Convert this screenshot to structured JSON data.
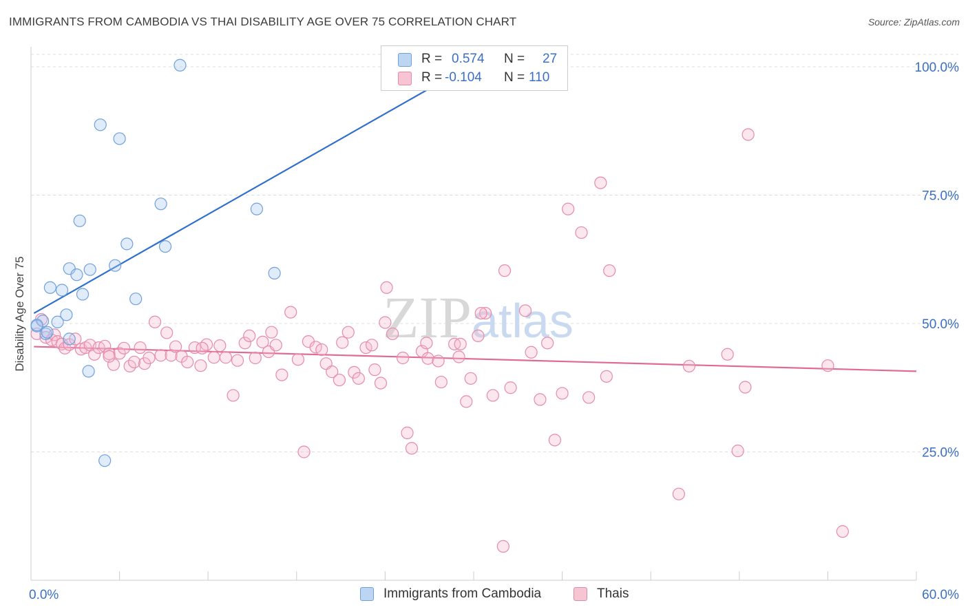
{
  "header": {
    "title": "IMMIGRANTS FROM CAMBODIA VS THAI DISABILITY AGE OVER 75 CORRELATION CHART",
    "source": "Source: ZipAtlas.com"
  },
  "watermark": "ZIPatlas",
  "legend": {
    "r_label": "R =",
    "n_label": "N =",
    "rows": [
      {
        "name": "Immigrants from Cambodia",
        "r": "0.574",
        "n": "27",
        "swatch_fill": "#bcd5f3",
        "swatch_stroke": "#6f9fdd"
      },
      {
        "name": "Thais",
        "r": "-0.104",
        "n": "110",
        "swatch_fill": "#f7c4d4",
        "swatch_stroke": "#e08aa8"
      }
    ]
  },
  "colors": {
    "value_blue": "#3b6fc4",
    "cambodia_fill": "rgba(170,200,240,0.35)",
    "cambodia_stroke": "#6f9fdd",
    "cambodia_line": "#2f6fcd",
    "thai_fill": "rgba(245,185,205,0.35)",
    "thai_stroke": "#e58aaa",
    "thai_line": "#e06a96",
    "grid": "#dcdcdc",
    "axis": "#cccccc"
  },
  "chart_data": {
    "type": "scatter",
    "title": "IMMIGRANTS FROM CAMBODIA VS THAI DISABILITY AGE OVER 75 CORRELATION CHART",
    "xlabel": "",
    "ylabel": "Disability Age Over 75",
    "xlim": [
      0,
      60
    ],
    "ylim": [
      0,
      102
    ],
    "x_tick_labels": [
      "0.0%",
      "60.0%"
    ],
    "y_ticks": [
      25,
      50,
      75,
      100
    ],
    "y_tick_labels": [
      "25.0%",
      "50.0%",
      "75.0%",
      "100.0%"
    ],
    "grid": true,
    "legend_position": "top-center",
    "series": [
      {
        "name": "Immigrants from Cambodia",
        "r": 0.574,
        "n": 27,
        "trend": {
          "x": [
            0.2,
            29.6
          ],
          "y": [
            52.0,
            100.0
          ]
        },
        "points": [
          [
            0.4,
            49.5
          ],
          [
            0.8,
            50.5
          ],
          [
            1.0,
            48.0
          ],
          [
            1.3,
            57.0
          ],
          [
            1.8,
            50.3
          ],
          [
            2.1,
            56.5
          ],
          [
            2.4,
            51.7
          ],
          [
            2.6,
            47.0
          ],
          [
            2.6,
            60.7
          ],
          [
            3.1,
            59.5
          ],
          [
            3.3,
            70.0
          ],
          [
            3.5,
            55.7
          ],
          [
            3.9,
            40.7
          ],
          [
            4.0,
            60.5
          ],
          [
            4.7,
            88.7
          ],
          [
            5.0,
            23.3
          ],
          [
            5.7,
            61.3
          ],
          [
            6.0,
            86.0
          ],
          [
            6.5,
            65.5
          ],
          [
            7.1,
            54.8
          ],
          [
            8.8,
            73.3
          ],
          [
            9.1,
            65.0
          ],
          [
            10.1,
            100.3
          ],
          [
            15.3,
            72.3
          ],
          [
            16.5,
            59.8
          ],
          [
            0.4,
            49.7
          ],
          [
            1.1,
            48.3
          ]
        ]
      },
      {
        "name": "Thais",
        "r": -0.104,
        "n": 110,
        "trend": {
          "x": [
            0.2,
            60.0
          ],
          "y": [
            45.5,
            40.7
          ]
        },
        "points": [
          [
            0.4,
            48.0
          ],
          [
            0.7,
            50.8
          ],
          [
            1.0,
            47.3
          ],
          [
            1.4,
            46.8
          ],
          [
            1.6,
            47.8
          ],
          [
            1.8,
            46.5
          ],
          [
            2.1,
            46.0
          ],
          [
            2.3,
            45.2
          ],
          [
            2.6,
            45.9
          ],
          [
            3.0,
            47.0
          ],
          [
            3.4,
            45.0
          ],
          [
            3.7,
            45.3
          ],
          [
            4.0,
            45.8
          ],
          [
            4.3,
            44.0
          ],
          [
            4.6,
            45.3
          ],
          [
            5.0,
            45.6
          ],
          [
            5.3,
            44.1
          ],
          [
            5.6,
            42.0
          ],
          [
            6.0,
            44.2
          ],
          [
            6.3,
            45.2
          ],
          [
            6.7,
            41.7
          ],
          [
            7.0,
            42.5
          ],
          [
            7.4,
            45.3
          ],
          [
            7.7,
            42.2
          ],
          [
            8.0,
            43.3
          ],
          [
            8.4,
            50.3
          ],
          [
            8.8,
            43.8
          ],
          [
            9.2,
            48.2
          ],
          [
            9.5,
            43.8
          ],
          [
            9.8,
            45.5
          ],
          [
            10.2,
            43.6
          ],
          [
            10.6,
            42.5
          ],
          [
            11.1,
            45.3
          ],
          [
            11.5,
            41.8
          ],
          [
            11.9,
            45.9
          ],
          [
            12.4,
            43.4
          ],
          [
            12.8,
            45.7
          ],
          [
            13.2,
            43.4
          ],
          [
            13.7,
            36.0
          ],
          [
            14.0,
            42.8
          ],
          [
            14.5,
            46.2
          ],
          [
            14.8,
            47.6
          ],
          [
            15.2,
            43.3
          ],
          [
            15.7,
            46.4
          ],
          [
            16.1,
            44.5
          ],
          [
            16.6,
            45.8
          ],
          [
            17.0,
            40.0
          ],
          [
            17.6,
            52.2
          ],
          [
            18.1,
            43.0
          ],
          [
            18.5,
            25.0
          ],
          [
            18.8,
            46.5
          ],
          [
            19.3,
            45.4
          ],
          [
            19.7,
            44.9
          ],
          [
            20.0,
            42.2
          ],
          [
            20.4,
            40.6
          ],
          [
            20.9,
            39.0
          ],
          [
            21.5,
            48.3
          ],
          [
            21.9,
            40.5
          ],
          [
            22.2,
            39.3
          ],
          [
            22.7,
            45.3
          ],
          [
            23.3,
            41.0
          ],
          [
            23.7,
            38.4
          ],
          [
            24.1,
            57.0
          ],
          [
            24.5,
            48.0
          ],
          [
            25.2,
            43.3
          ],
          [
            25.5,
            28.7
          ],
          [
            25.8,
            25.7
          ],
          [
            26.5,
            44.6
          ],
          [
            26.9,
            43.2
          ],
          [
            27.6,
            42.7
          ],
          [
            27.8,
            38.6
          ],
          [
            28.7,
            46.0
          ],
          [
            29.0,
            43.5
          ],
          [
            29.5,
            34.8
          ],
          [
            29.8,
            39.3
          ],
          [
            30.3,
            47.6
          ],
          [
            30.8,
            52.0
          ],
          [
            31.3,
            36.0
          ],
          [
            32.0,
            6.6
          ],
          [
            32.5,
            37.5
          ],
          [
            33.5,
            52.5
          ],
          [
            33.9,
            44.4
          ],
          [
            34.5,
            35.2
          ],
          [
            35.5,
            27.3
          ],
          [
            36.0,
            36.4
          ],
          [
            36.4,
            72.3
          ],
          [
            37.3,
            67.7
          ],
          [
            37.8,
            35.6
          ],
          [
            38.6,
            77.4
          ],
          [
            39.0,
            39.7
          ],
          [
            39.2,
            60.3
          ],
          [
            43.9,
            16.8
          ],
          [
            44.6,
            41.7
          ],
          [
            47.2,
            44.0
          ],
          [
            47.9,
            25.2
          ],
          [
            48.4,
            37.6
          ],
          [
            48.6,
            86.8
          ],
          [
            54.0,
            41.8
          ],
          [
            55.0,
            9.5
          ],
          [
            32.1,
            60.3
          ],
          [
            24.0,
            50.2
          ],
          [
            26.8,
            46.2
          ],
          [
            29.1,
            46.0
          ],
          [
            23.1,
            45.8
          ],
          [
            11.6,
            45.2
          ],
          [
            5.3,
            43.6
          ],
          [
            16.3,
            48.3
          ],
          [
            30.5,
            52.0
          ],
          [
            35.0,
            46.2
          ],
          [
            21.1,
            46.3
          ]
        ]
      }
    ]
  },
  "bottom_legend": [
    "Immigrants from Cambodia",
    "Thais"
  ]
}
